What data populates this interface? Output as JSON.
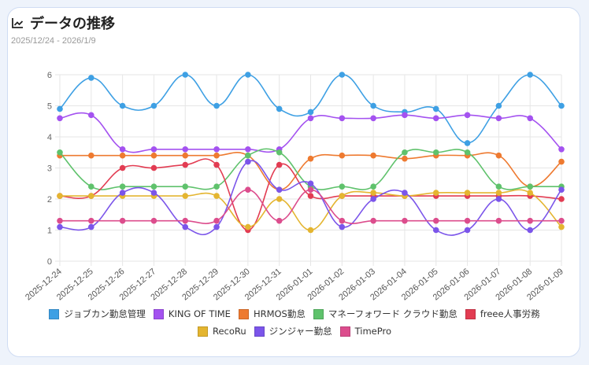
{
  "header": {
    "title": "データの推移",
    "icon": "line-chart-icon",
    "date_range": "2025/12/24 - 2026/1/9"
  },
  "chart_data": {
    "type": "line",
    "title": "",
    "xlabel": "",
    "ylabel": "",
    "ylim": [
      0,
      6
    ],
    "yticks": [
      "0",
      "1",
      "2",
      "3",
      "4",
      "5",
      "6"
    ],
    "grid": true,
    "legend_position": "bottom",
    "categories": [
      "2025-12-24",
      "2025-12-25",
      "2025-12-26",
      "2025-12-27",
      "2025-12-28",
      "2025-12-29",
      "2025-12-30",
      "2025-12-31",
      "2026-01-01",
      "2026-01-02",
      "2026-01-03",
      "2026-01-04",
      "2026-01-05",
      "2026-01-06",
      "2026-01-07",
      "2026-01-08",
      "2026-01-09"
    ],
    "series": [
      {
        "name": "ジョブカン勤怠管理",
        "color": "#3ea0e4",
        "values": [
          4.9,
          5.9,
          5.0,
          5.0,
          6.0,
          5.0,
          6.0,
          4.9,
          4.8,
          6.0,
          5.0,
          4.8,
          4.9,
          3.8,
          5.0,
          6.0,
          5.0
        ]
      },
      {
        "name": "KING OF TIME",
        "color": "#a452f0",
        "values": [
          4.6,
          4.7,
          3.6,
          3.6,
          3.6,
          3.6,
          3.6,
          3.6,
          4.6,
          4.6,
          4.6,
          4.7,
          4.6,
          4.7,
          4.6,
          4.6,
          3.6
        ]
      },
      {
        "name": "HRMOS勤怠",
        "color": "#ee7a30",
        "values": [
          3.4,
          3.4,
          3.4,
          3.4,
          3.4,
          3.4,
          3.4,
          2.3,
          3.3,
          3.4,
          3.4,
          3.3,
          3.4,
          3.4,
          3.4,
          2.4,
          3.2
        ]
      },
      {
        "name": "マネーフォワード クラウド勤怠",
        "color": "#5fc26c",
        "values": [
          3.5,
          2.4,
          2.4,
          2.4,
          2.4,
          2.4,
          3.4,
          3.5,
          2.4,
          2.4,
          2.4,
          3.5,
          3.5,
          3.5,
          2.4,
          2.4,
          2.4
        ]
      },
      {
        "name": "freee人事労務",
        "color": "#e23c52",
        "values": [
          2.1,
          2.1,
          3.0,
          3.0,
          3.1,
          3.1,
          1.0,
          3.1,
          2.1,
          2.1,
          2.1,
          2.1,
          2.1,
          2.1,
          2.1,
          2.1,
          2.0
        ]
      },
      {
        "name": "RecoRu",
        "color": "#e4b530",
        "values": [
          2.1,
          2.1,
          2.1,
          2.1,
          2.1,
          2.1,
          1.1,
          2.0,
          1.0,
          2.1,
          2.2,
          2.1,
          2.2,
          2.2,
          2.2,
          2.2,
          1.1
        ]
      },
      {
        "name": "ジンジャー勤怠",
        "color": "#7b55ea",
        "values": [
          1.1,
          1.1,
          2.2,
          2.2,
          1.1,
          1.1,
          3.2,
          2.3,
          2.5,
          1.1,
          2.0,
          2.2,
          1.0,
          1.0,
          2.0,
          1.0,
          2.3
        ]
      },
      {
        "name": "TimePro",
        "color": "#dc4d8d",
        "values": [
          1.3,
          1.3,
          1.3,
          1.3,
          1.3,
          1.3,
          2.3,
          1.3,
          2.3,
          1.3,
          1.3,
          1.3,
          1.3,
          1.3,
          1.3,
          1.3,
          1.3
        ]
      }
    ]
  }
}
